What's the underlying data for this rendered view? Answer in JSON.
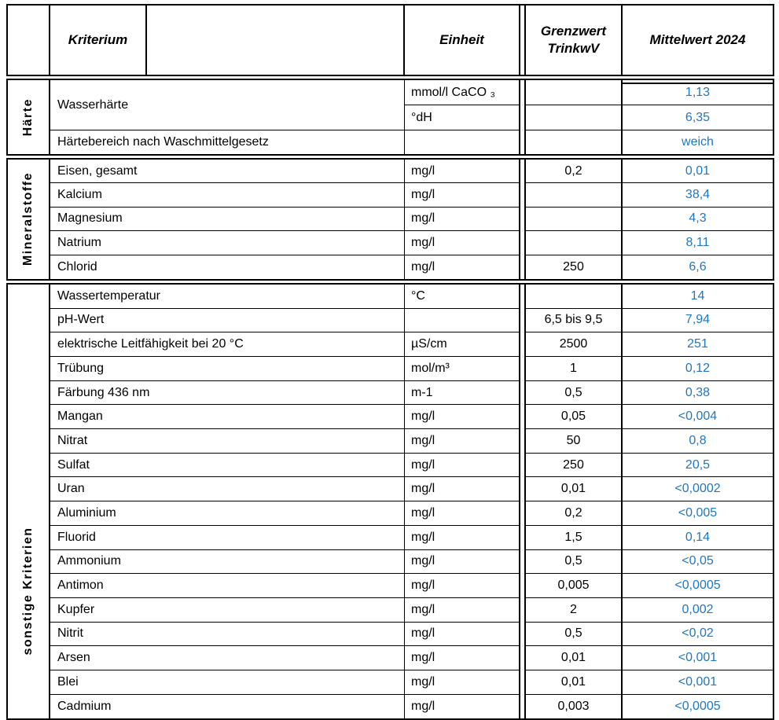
{
  "header": {
    "kriterium": "Kriterium",
    "einheit": "Einheit",
    "grenzwert_line1": "Grenzwert",
    "grenzwert_line2": "TrinkwV",
    "mittelwert": "Mittelwert 2024"
  },
  "haerte": {
    "label": "Härte",
    "wasserhaerte": {
      "kriterium": "Wasserhärte",
      "unit1": "mmol/l CaCO ₃",
      "value1": "1,13",
      "unit2": "°dH",
      "value2": "6,35"
    },
    "haertebereich": {
      "kriterium": "Härtebereich nach Waschmittelgesetz",
      "value": "weich"
    }
  },
  "mineralstoffe": {
    "label": "Mineralstoffe",
    "rows": [
      {
        "kriterium": "Eisen, gesamt",
        "einheit": "mg/l",
        "grenzwert": "0,2",
        "mittelwert": "0,01"
      },
      {
        "kriterium": "Kalcium",
        "einheit": "mg/l",
        "grenzwert": "",
        "mittelwert": "38,4"
      },
      {
        "kriterium": "Magnesium",
        "einheit": "mg/l",
        "grenzwert": "",
        "mittelwert": "4,3"
      },
      {
        "kriterium": "Natrium",
        "einheit": "mg/l",
        "grenzwert": "",
        "mittelwert": "8,11"
      },
      {
        "kriterium": "Chlorid",
        "einheit": "mg/l",
        "grenzwert": "250",
        "mittelwert": "6,6"
      }
    ]
  },
  "sonstige": {
    "label": "sonstige Kriterien",
    "rows": [
      {
        "kriterium": "Wassertemperatur",
        "einheit": "°C",
        "grenzwert": "",
        "mittelwert": "14"
      },
      {
        "kriterium": "pH-Wert",
        "einheit": "",
        "grenzwert": "6,5 bis 9,5",
        "mittelwert": "7,94"
      },
      {
        "kriterium": "elektrische Leitfähigkeit bei 20 °C",
        "einheit": "µS/cm",
        "grenzwert": "2500",
        "mittelwert": "251"
      },
      {
        "kriterium": "Trübung",
        "einheit": "mol/m³",
        "grenzwert": "1",
        "mittelwert": "0,12"
      },
      {
        "kriterium": "Färbung 436 nm",
        "einheit": "m-1",
        "grenzwert": "0,5",
        "mittelwert": "0,38"
      },
      {
        "kriterium": "Mangan",
        "einheit": "mg/l",
        "grenzwert": "0,05",
        "mittelwert": "<0,004"
      },
      {
        "kriterium": "Nitrat",
        "einheit": "mg/l",
        "grenzwert": "50",
        "mittelwert": "0,8"
      },
      {
        "kriterium": "Sulfat",
        "einheit": "mg/l",
        "grenzwert": "250",
        "mittelwert": "20,5"
      },
      {
        "kriterium": "Uran",
        "einheit": "mg/l",
        "grenzwert": "0,01",
        "mittelwert": "<0,0002"
      },
      {
        "kriterium": "Aluminium",
        "einheit": "mg/l",
        "grenzwert": "0,2",
        "mittelwert": "<0,005"
      },
      {
        "kriterium": "Fluorid",
        "einheit": "mg/l",
        "grenzwert": "1,5",
        "mittelwert": "0,14"
      },
      {
        "kriterium": "Ammonium",
        "einheit": "mg/l",
        "grenzwert": "0,5",
        "mittelwert": "<0,05"
      },
      {
        "kriterium": "Antimon",
        "einheit": "mg/l",
        "grenzwert": "0,005",
        "mittelwert": "<0,0005"
      },
      {
        "kriterium": "Kupfer",
        "einheit": "mg/l",
        "grenzwert": "2",
        "mittelwert": "0,002"
      },
      {
        "kriterium": "Nitrit",
        "einheit": "mg/l",
        "grenzwert": "0,5",
        "mittelwert": "<0,02"
      },
      {
        "kriterium": "Arsen",
        "einheit": "mg/l",
        "grenzwert": "0,01",
        "mittelwert": "<0,001"
      },
      {
        "kriterium": "Blei",
        "einheit": "mg/l",
        "grenzwert": "0,01",
        "mittelwert": "<0,001"
      },
      {
        "kriterium": "Cadmium",
        "einheit": "mg/l",
        "grenzwert": "0,003",
        "mittelwert": "<0,0005"
      }
    ]
  },
  "colors": {
    "value_blue": "#2077C2",
    "grid_line": "#000000"
  }
}
